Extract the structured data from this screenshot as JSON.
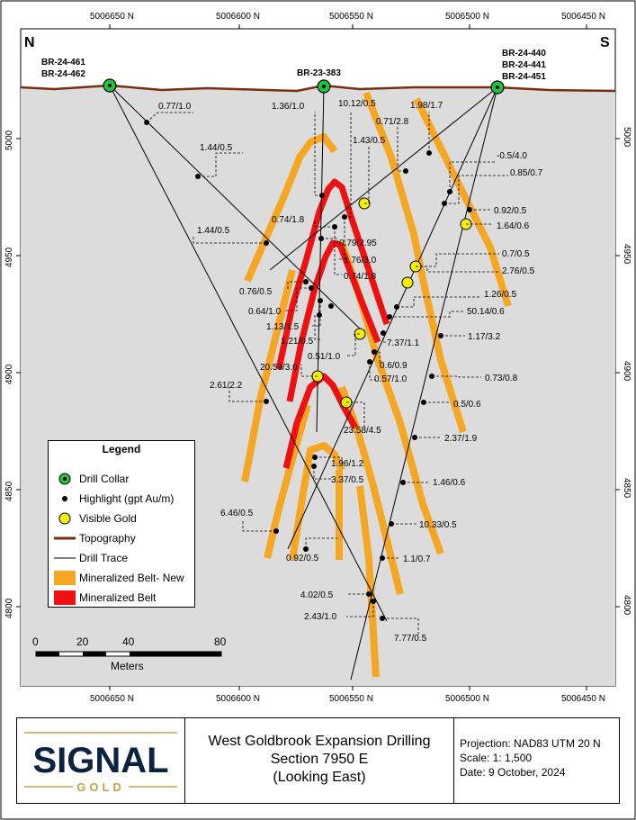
{
  "top_axis": [
    "5006650 N",
    "5006600 N",
    "5006550 N",
    "5006500 N",
    "5006450 N"
  ],
  "bottom_axis": [
    "5006650 N",
    "5006600 N",
    "5006550 N",
    "5006500 N",
    "5006450 N"
  ],
  "left_axis": [
    "5000",
    "4950",
    "4900",
    "4850",
    "4800"
  ],
  "right_axis": [
    "5000",
    "4950",
    "4900",
    "4850",
    "4800"
  ],
  "direction_left": "N",
  "direction_right": "S",
  "collars": {
    "left": [
      "BR-24-461",
      "BR-24-462"
    ],
    "middle": [
      "BR-23-383"
    ],
    "right": [
      "BR-24-440",
      "BR-24-441",
      "BR-24-451"
    ]
  },
  "assays": [
    "0.77/1.0",
    "1.44/0.5",
    "1.44/0.5",
    "1.36/1.0",
    "10.12/0.5",
    "1.98/1.7",
    "0.71/2.8",
    "1.43/0.5",
    "-0.5/4.0",
    "0.85/0.7",
    "0.92/0.5",
    "1.64/0.6",
    "0.74/1.8",
    "0.79/2.95",
    "1.76/3.0",
    "0.74/1.8",
    "0.7/0.5",
    "2.76/0.5",
    "1.26/0.5",
    "50.14/0.6",
    "0.76/0.5",
    "0.64/1.0",
    "1.13/1.5",
    "1.21/0.5",
    "7.37/1.1",
    "1.17/3.2",
    "0.51/1.0",
    "0.6/0.9",
    "0.57/1.0",
    "20.59/3.0",
    "0.73/0.8",
    "2.61/2.2",
    "0.5/0.6",
    "23.58/4.5",
    "2.37/1.9",
    "1.96/1.2",
    "3.37/0.5",
    "1.46/0.6",
    "6.46/0.5",
    "10.33/0.5",
    "0.92/0.5",
    "1.1/0.7",
    "4.02/0.5",
    "2.43/1.0",
    "7.77/0.5"
  ],
  "legend": {
    "title": "Legend",
    "items": [
      "Drill Collar",
      "Highlight (gpt Au/m)",
      "Visible Gold",
      "Topography",
      "Drill Trace",
      "Mineralized Belt- New",
      "Mineralized Belt"
    ]
  },
  "scale_bar": {
    "ticks": [
      "0",
      "20",
      "40",
      "80"
    ],
    "unit": "Meters"
  },
  "colors": {
    "background": "#dcdcdc",
    "topography": "#7b2e0e",
    "belt_new": "#f5a623",
    "belt": "#ee1111",
    "collar": "#22c33a",
    "visible_gold": "#f6f000"
  },
  "footer": {
    "logo_word": "SIGNAL",
    "logo_sub": "GOLD",
    "title_lines": [
      "West Goldbrook Expansion Drilling",
      "Section 7950 E",
      "(Looking East)"
    ],
    "info_lines": [
      "Projection: NAD83 UTM 20 N",
      "Scale: 1: 1,500",
      "Date: 9 October, 2024"
    ]
  }
}
